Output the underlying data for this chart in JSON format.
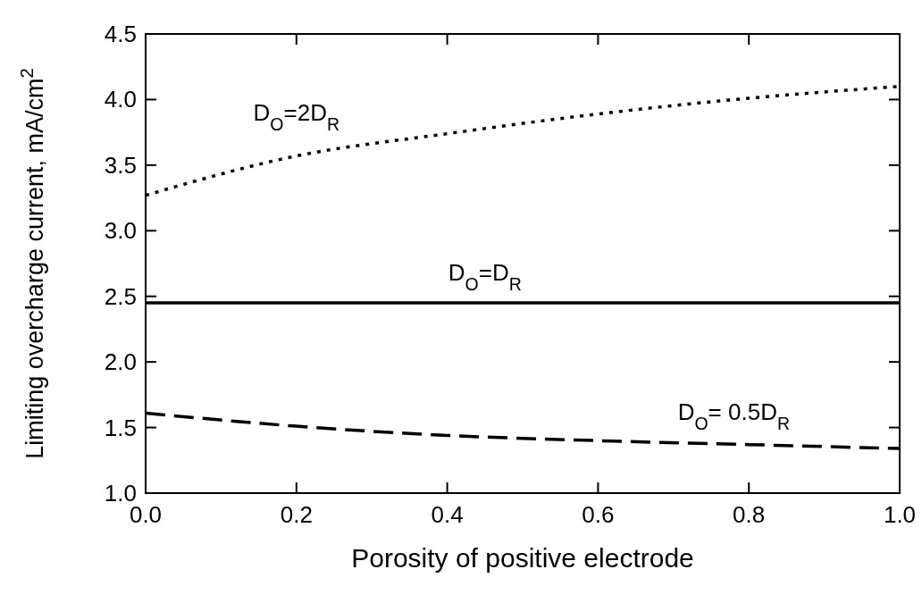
{
  "chart_data": {
    "type": "line",
    "xlabel": "Porosity of positive electrode",
    "ylabel": "Limiting overcharge current, mA/cm$^{2}$",
    "x": [
      0,
      0.2,
      0.4,
      0.6,
      0.8,
      1.0
    ],
    "xlim": [
      0,
      1.0
    ],
    "xticks": [
      {
        "value": 0,
        "label": "0.0"
      },
      0.2,
      0.4,
      0.6,
      0.8,
      {
        "value": 1,
        "label": "1.0"
      }
    ],
    "ylim": [
      1.0,
      4.5
    ],
    "yticks": [
      {
        "value": 1,
        "label": "1.0"
      },
      1.5,
      {
        "value": 2,
        "label": "2.0"
      },
      2.5,
      {
        "value": 3,
        "label": "3.0"
      },
      3.5,
      {
        "value": 4,
        "label": "4.0"
      },
      4.5
    ],
    "grid": false,
    "series": [
      {
        "name": "D$_{O}$=2D$_{R}$",
        "color": "#000000",
        "line_style": "dotted",
        "values": [
          3.27,
          3.57,
          3.74,
          3.89,
          4.01,
          4.1
        ]
      },
      {
        "name": "D$_{O}$=D$_{R}$",
        "color": "#000000",
        "line_style": "solid",
        "values": [
          2.45,
          2.45,
          2.45,
          2.45,
          2.45,
          2.45
        ]
      },
      {
        "name": "D$_{O}$= 0.5D$_{R}$",
        "color": "#000000",
        "line_style": "dashed",
        "values": [
          1.61,
          1.51,
          1.44,
          1.4,
          1.37,
          1.34
        ]
      }
    ]
  }
}
